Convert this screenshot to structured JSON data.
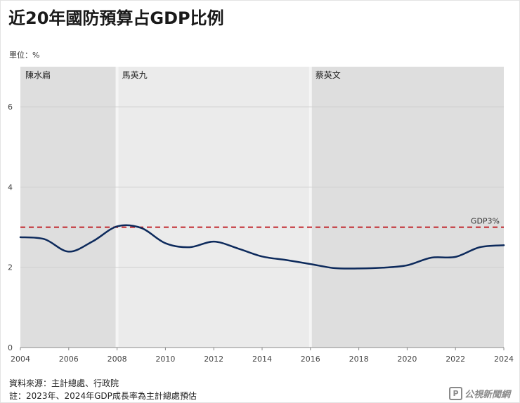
{
  "title": "近20年國防預算占GDP比例",
  "unit_label": "單位：%",
  "footer": {
    "source": "資料來源：主計總處、行政院",
    "note": "註：2023年、2024年GDP成長率為主計總處預估"
  },
  "logo": {
    "mark": "P",
    "text": "公視新聞網"
  },
  "chart_data": {
    "type": "line",
    "title": "近20年國防預算占GDP比例",
    "ylabel": "單位：%",
    "xlim": [
      2004,
      2024
    ],
    "ylim": [
      0,
      7
    ],
    "x_ticks": [
      2004,
      2006,
      2008,
      2010,
      2012,
      2014,
      2016,
      2018,
      2020,
      2022,
      2024
    ],
    "y_ticks": [
      0,
      2,
      4,
      6
    ],
    "grid": true,
    "series": [
      {
        "name": "國防預算占GDP比例",
        "color": "#0d2a5c",
        "x": [
          2004,
          2005,
          2006,
          2007,
          2008,
          2009,
          2010,
          2011,
          2012,
          2013,
          2014,
          2015,
          2016,
          2017,
          2018,
          2019,
          2020,
          2021,
          2022,
          2023,
          2024
        ],
        "y": [
          2.75,
          2.7,
          2.39,
          2.65,
          3.02,
          2.98,
          2.6,
          2.5,
          2.64,
          2.47,
          2.27,
          2.18,
          2.08,
          1.98,
          1.97,
          1.99,
          2.05,
          2.24,
          2.26,
          2.5,
          2.55
        ]
      }
    ],
    "reference_line": {
      "label": "GDP3%",
      "value": 3,
      "color": "#c1272d"
    },
    "periods": [
      {
        "label": "陳水扁",
        "start": 2004,
        "end": 2008,
        "color": "#dedede"
      },
      {
        "label": "馬英九",
        "start": 2008,
        "end": 2016,
        "color": "#ebebeb"
      },
      {
        "label": "蔡英文",
        "start": 2016,
        "end": 2024,
        "color": "#dedede"
      }
    ]
  }
}
